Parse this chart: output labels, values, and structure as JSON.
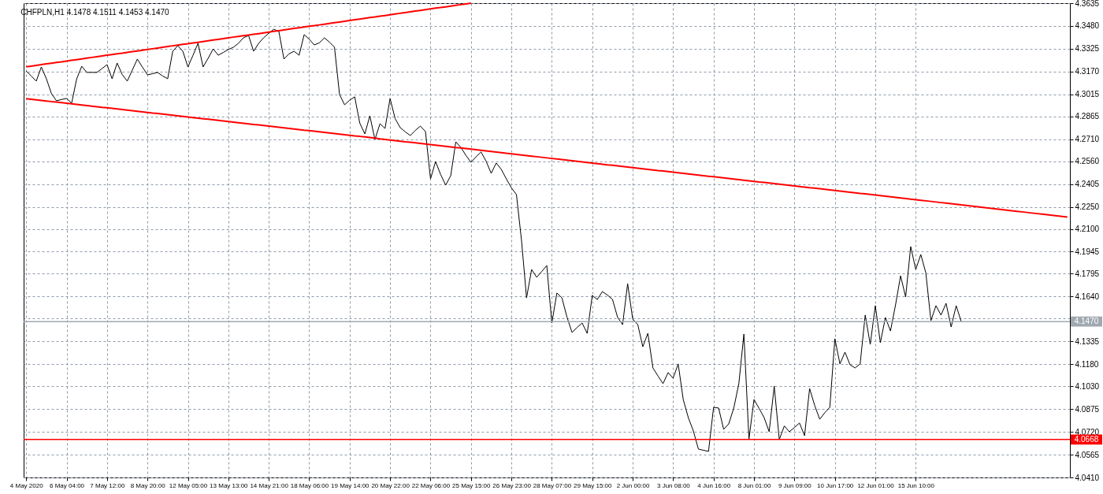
{
  "chart_data": {
    "type": "line",
    "title": "CHFPLN,H1  4.1478 4.1511 4.1453 4.1470",
    "categories": [
      "4 May 2020",
      null,
      null,
      null,
      null,
      null,
      null,
      null,
      "6 May 04:00",
      null,
      null,
      null,
      null,
      null,
      null,
      null,
      "7 May 12:00",
      null,
      null,
      null,
      null,
      null,
      null,
      null,
      "8 May 20:00",
      null,
      null,
      null,
      null,
      null,
      null,
      null,
      "12 May 05:00",
      null,
      null,
      null,
      null,
      null,
      null,
      null,
      "13 May 13:00",
      null,
      null,
      null,
      null,
      null,
      null,
      null,
      "14 May 21:00",
      null,
      null,
      null,
      null,
      null,
      null,
      null,
      "18 May 06:00",
      null,
      null,
      null,
      null,
      null,
      null,
      null,
      "19 May 14:00",
      null,
      null,
      null,
      null,
      null,
      null,
      null,
      "20 May 22:00",
      null,
      null,
      null,
      null,
      null,
      null,
      null,
      "22 May 06:00",
      null,
      null,
      null,
      null,
      null,
      null,
      null,
      "25 May 15:00",
      null,
      null,
      null,
      null,
      null,
      null,
      null,
      "26 May 23:00",
      null,
      null,
      null,
      null,
      null,
      null,
      null,
      "28 May 07:00",
      null,
      null,
      null,
      null,
      null,
      null,
      null,
      "29 May 15:00",
      null,
      null,
      null,
      null,
      null,
      null,
      null,
      "2 Jun 00:00",
      null,
      null,
      null,
      null,
      null,
      null,
      null,
      "3 Jun 08:00",
      null,
      null,
      null,
      null,
      null,
      null,
      null,
      "4 Jun 16:00",
      null,
      null,
      null,
      null,
      null,
      null,
      null,
      "8 Jun 01:00",
      null,
      null,
      null,
      null,
      null,
      null,
      null,
      "9 Jun 09:00",
      null,
      null,
      null,
      null,
      null,
      null,
      null,
      "10 Jun 17:00",
      null,
      null,
      null,
      null,
      null,
      null,
      null,
      "12 Jun 01:00",
      null,
      null,
      null,
      null,
      null,
      null,
      null,
      "15 Jun 10:00",
      null,
      null,
      null,
      null,
      null,
      null,
      null,
      null,
      null,
      null,
      null,
      null,
      null,
      null,
      null,
      null,
      null,
      null,
      null,
      null,
      null,
      null,
      null,
      null,
      null,
      null,
      null,
      null,
      null,
      null
    ],
    "ylim": [
      4.041,
      4.3635
    ],
    "yticks": [
      {
        "value": 4.041,
        "label": "4.0410"
      },
      4.0565,
      {
        "value": 4.072,
        "label": "4.0720"
      },
      4.0875,
      {
        "value": 4.103,
        "label": "4.1030"
      },
      {
        "value": 4.118,
        "label": "4.1180"
      },
      4.1335,
      {
        "value": 4.149,
        "label": null
      },
      {
        "value": 4.164,
        "label": "4.1640"
      },
      4.1795,
      4.1945,
      {
        "value": 4.21,
        "label": "4.2100"
      },
      {
        "value": 4.225,
        "label": "4.2250"
      },
      4.2405,
      {
        "value": 4.256,
        "label": "4.2560"
      },
      {
        "value": 4.271,
        "label": "4.2710"
      },
      4.2865,
      4.3015,
      {
        "value": 4.317,
        "label": "4.3170"
      },
      4.3325,
      {
        "value": 4.348,
        "label": "4.3480"
      },
      4.3635
    ],
    "grid": true,
    "series": [
      {
        "color": "#000000",
        "values": [
          4.3174,
          4.314,
          4.3105,
          4.3201,
          4.3121,
          4.302,
          4.2971,
          4.298,
          4.2987,
          4.2955,
          4.3121,
          4.3206,
          4.3164,
          4.3164,
          4.3164,
          4.319,
          4.3217,
          4.3121,
          4.3228,
          4.315,
          4.3105,
          4.318,
          4.3255,
          4.32,
          4.3148,
          4.3155,
          4.3164,
          4.314,
          4.3121,
          4.3308,
          4.3346,
          4.3308,
          4.3201,
          4.328,
          4.3362,
          4.3201,
          4.326,
          4.3324,
          4.3281,
          4.33,
          4.332,
          4.3335,
          4.3362,
          4.34,
          4.3415,
          4.3308,
          4.3362,
          4.34,
          4.3431,
          4.3458,
          4.3442,
          4.3255,
          4.329,
          4.3308,
          4.3281,
          4.3421,
          4.339,
          4.3351,
          4.3365,
          4.3399,
          4.337,
          4.3335,
          4.3014,
          4.2944,
          4.2975,
          4.2998,
          4.282,
          4.2746,
          4.2869,
          4.2708,
          4.2815,
          4.2783,
          4.2987,
          4.285,
          4.2789,
          4.276,
          4.2735,
          4.277,
          4.2799,
          4.2762,
          4.244,
          4.2558,
          4.247,
          4.2398,
          4.2462,
          4.2692,
          4.2655,
          4.26,
          4.2553,
          4.259,
          4.2623,
          4.256,
          4.2478,
          4.2548,
          4.2505,
          4.244,
          4.238,
          4.2333,
          4.2023,
          4.1631,
          4.1824,
          4.1771,
          4.181,
          4.1851,
          4.146,
          4.1664,
          4.1631,
          4.15,
          4.1396,
          4.143,
          4.146,
          4.139,
          4.1648,
          4.162,
          4.1674,
          4.165,
          4.1621,
          4.15,
          4.1449,
          4.1728,
          4.1487,
          4.145,
          4.1299,
          4.139,
          4.1155,
          4.11,
          4.1048,
          4.1123,
          4.1085,
          4.1182,
          4.094,
          4.0817,
          4.0726,
          4.0603,
          4.0595,
          4.0587,
          4.0887,
          4.0882,
          4.0737,
          4.0774,
          4.0882,
          4.1048,
          4.1385,
          4.067,
          4.094,
          4.088,
          4.0817,
          4.0721,
          4.1031,
          4.0668,
          4.076,
          4.0721,
          4.075,
          4.078,
          4.0694,
          4.1015,
          4.09,
          4.0806,
          4.085,
          4.0887,
          4.1353,
          4.1182,
          4.1262,
          4.1176,
          4.1155,
          4.1182,
          4.1514,
          4.1315,
          4.1578,
          4.1326,
          4.1498,
          4.1406,
          4.1583,
          4.1781,
          4.1637,
          4.198,
          4.1824,
          4.1926,
          4.18,
          4.1476,
          4.1578,
          4.1514,
          4.1594,
          4.1433,
          4.1578,
          4.147,
          null,
          null,
          null,
          null,
          null,
          null,
          null,
          null,
          null,
          null,
          null,
          null,
          null,
          null,
          null,
          null,
          null,
          null,
          null,
          null,
          null
        ]
      },
      {
        "color": "#ff0000",
        "values": [
          4.3202,
          4.3207,
          4.3212,
          4.3217,
          4.3222,
          4.3227,
          4.3232,
          4.3236,
          4.3241,
          4.3246,
          4.3251,
          4.3256,
          4.3261,
          4.3266,
          4.3271,
          4.3276,
          4.3281,
          4.3286,
          4.3291,
          4.3295,
          4.33,
          4.3305,
          4.331,
          4.3315,
          4.332,
          4.3325,
          4.333,
          4.3335,
          4.334,
          4.3345,
          4.335,
          4.3355,
          4.3359,
          4.3364,
          4.3369,
          4.3374,
          4.3379,
          4.3384,
          4.3389,
          4.3394,
          4.3399,
          4.3404,
          4.3409,
          4.3414,
          4.3418,
          4.3423,
          4.3428,
          4.3433,
          4.3438,
          4.3443,
          4.3448,
          4.3453,
          4.3458,
          4.3463,
          4.3468,
          4.3473,
          4.3478,
          4.3482,
          4.3487,
          4.3492,
          4.3497,
          4.3502,
          4.3507,
          4.3512,
          4.3517,
          4.3522,
          4.3527,
          4.3532,
          4.3537,
          4.3541,
          4.3546,
          4.3551,
          4.3556,
          4.3561,
          4.3566,
          4.3571,
          4.3576,
          4.3581,
          4.3586,
          4.3591,
          4.3596,
          4.3601,
          4.3605,
          4.361,
          4.3615,
          4.362,
          4.3625,
          4.363,
          4.3635,
          null,
          null,
          null,
          null,
          null,
          null,
          null,
          null,
          null,
          null,
          null,
          null,
          null,
          null,
          null,
          null,
          null,
          null,
          null,
          null,
          null,
          null,
          null,
          null,
          null,
          null,
          null,
          null,
          null,
          null,
          null,
          null,
          null,
          null,
          null,
          null,
          null,
          null,
          null,
          null,
          null,
          null,
          null,
          null,
          null,
          null,
          null,
          null,
          null,
          null,
          null,
          null,
          null,
          null,
          null,
          null,
          null,
          null,
          null,
          null,
          null,
          null,
          null,
          null,
          null,
          null,
          null,
          null,
          null,
          null,
          null,
          null,
          null,
          null,
          null,
          null,
          null,
          null,
          null,
          null,
          null,
          null,
          null,
          null,
          null,
          null,
          null,
          null,
          null,
          null,
          null,
          null,
          null,
          null,
          null,
          null,
          null,
          null,
          null,
          null,
          null,
          null,
          null,
          null,
          null,
          null,
          null,
          null,
          null,
          null,
          null,
          null,
          null,
          null,
          null,
          null,
          null,
          null
        ]
      },
      {
        "color": "#ff0000",
        "values": [
          4.2986,
          4.2982,
          4.2978,
          4.2974,
          4.297,
          4.2966,
          4.2963,
          4.2959,
          4.2955,
          4.2951,
          4.2947,
          4.2943,
          4.2939,
          4.2935,
          4.2931,
          4.2927,
          4.2924,
          4.292,
          4.2916,
          4.2912,
          4.2908,
          4.2904,
          4.29,
          4.2896,
          4.2892,
          4.2888,
          4.2885,
          4.2881,
          4.2877,
          4.2873,
          4.2869,
          4.2865,
          4.2861,
          4.2857,
          4.2853,
          4.2849,
          4.2846,
          4.2842,
          4.2838,
          4.2834,
          4.283,
          4.2826,
          4.2822,
          4.2818,
          4.2814,
          4.281,
          4.2807,
          4.2803,
          4.2799,
          4.2795,
          4.2791,
          4.2787,
          4.2783,
          4.2779,
          4.2775,
          4.2771,
          4.2768,
          4.2764,
          4.276,
          4.2756,
          4.2752,
          4.2748,
          4.2744,
          4.274,
          4.2736,
          4.2732,
          4.2729,
          4.2725,
          4.2721,
          4.2717,
          4.2712,
          4.2708,
          4.2704,
          4.27,
          4.2696,
          4.2692,
          4.2689,
          4.2685,
          4.2681,
          4.2677,
          4.2673,
          4.2669,
          4.2665,
          4.2661,
          4.2657,
          4.2653,
          4.265,
          4.2646,
          4.2642,
          4.2638,
          4.2634,
          4.263,
          4.2626,
          4.2622,
          4.2618,
          4.2614,
          4.2611,
          4.2607,
          4.2603,
          4.2599,
          4.2595,
          4.2591,
          4.2587,
          4.2583,
          4.2579,
          4.2575,
          4.2572,
          4.2568,
          4.2564,
          4.256,
          4.2556,
          4.2552,
          4.2548,
          4.2544,
          4.254,
          4.2536,
          4.2533,
          4.2529,
          4.2525,
          4.2521,
          4.2517,
          4.2513,
          4.2509,
          4.2505,
          4.2501,
          4.2497,
          4.2494,
          4.249,
          4.2486,
          4.2482,
          4.2478,
          4.2474,
          4.247,
          4.2466,
          4.2462,
          4.2458,
          4.2455,
          4.2451,
          4.2447,
          4.2443,
          4.2439,
          4.2435,
          4.2431,
          4.2427,
          4.2423,
          4.2419,
          4.2416,
          4.2412,
          4.2408,
          4.2404,
          4.24,
          4.2396,
          4.2392,
          4.2388,
          4.2384,
          4.238,
          4.2377,
          4.2373,
          4.2369,
          4.2365,
          4.2361,
          4.2357,
          4.2353,
          4.2349,
          4.2345,
          4.2341,
          4.2338,
          4.2334,
          4.233,
          4.2326,
          4.2322,
          4.2318,
          4.2314,
          4.231,
          4.2306,
          4.2302,
          4.2299,
          4.2295,
          4.2291,
          4.2287,
          4.2283,
          4.2279,
          4.2275,
          4.2271,
          4.2267,
          4.2263,
          4.226,
          4.2256,
          4.2252,
          4.2248,
          4.2243,
          4.2239,
          4.2235,
          4.2231,
          4.2227,
          4.2223,
          4.222,
          4.2216,
          4.2212,
          4.2208,
          4.2204,
          4.22,
          4.2196,
          4.2192,
          4.2188,
          4.2184,
          4.2181
        ]
      }
    ],
    "ref_lines": [
      {
        "axis": "y",
        "value": 4.147,
        "label": "4.1470",
        "color": "#a0a8b0"
      },
      {
        "axis": "y",
        "value": 4.0668,
        "label": "4.0668",
        "color": "#ff0000"
      }
    ]
  }
}
